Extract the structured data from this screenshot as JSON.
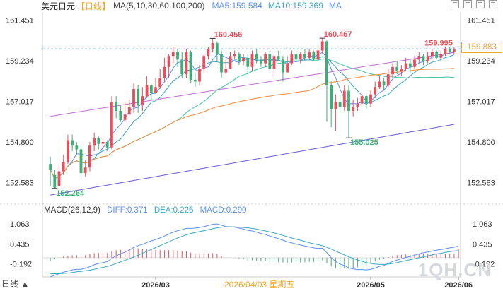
{
  "header": {
    "symbol": "美元日元",
    "period": "【日线】",
    "ma_label": "MA(5,10,30,60,100,200)",
    "ma5": "MA5:159.584",
    "ma10": "MA10:159.369",
    "ma_more": "MA"
  },
  "macd_header": {
    "label": "MACD(26,12,9)",
    "diff": "DIFF:0.371",
    "dea": "DEA:0.226",
    "macd": "MACD:0.290"
  },
  "current_price_badge": "159.883",
  "period_tab": "日线 ▲",
  "watermark": "1QH.CN",
  "crosshair_date": "2026/04/03 星期五",
  "colors": {
    "up": "#e84f5c",
    "down": "#3fae74",
    "ma5": "#5b8ff9",
    "ma10": "#3aa6c6",
    "ma30": "#41c2a8",
    "ma60": "#f08a3c",
    "ma100": "#c06fd4",
    "ma200": "#6a5cd6",
    "dash": "#4a90c2"
  },
  "chart_data": [
    {
      "type": "candlestick",
      "title": "美元日元 日线",
      "ylim": [
        151.6,
        161.9
      ],
      "yticks": [
        "161.451",
        "159.234",
        "157.017",
        "154.800",
        "152.583"
      ],
      "xticks": [
        "2026/03",
        "2026/05",
        "2026/06"
      ],
      "annotations": [
        {
          "label": "160.456",
          "value": 160.456,
          "type": "high"
        },
        {
          "label": "160.467",
          "value": 160.467,
          "type": "high"
        },
        {
          "label": "159.995",
          "value": 159.995,
          "type": "high"
        },
        {
          "label": "155.025",
          "value": 155.025,
          "type": "low"
        },
        {
          "label": "152.264",
          "value": 152.264,
          "type": "low"
        }
      ],
      "last_price": 159.883,
      "candles": [
        [
          153.6,
          153.3,
          154.0,
          152.4
        ],
        [
          153.0,
          152.3,
          153.3,
          152.26
        ],
        [
          152.4,
          153.2,
          153.5,
          152.3
        ],
        [
          153.2,
          153.7,
          154.1,
          153.0
        ],
        [
          153.7,
          154.9,
          155.2,
          153.6
        ],
        [
          154.9,
          154.6,
          155.2,
          154.3
        ],
        [
          154.6,
          154.4,
          154.8,
          154.1
        ],
        [
          154.4,
          153.1,
          154.6,
          152.9
        ],
        [
          153.1,
          153.4,
          153.8,
          152.9
        ],
        [
          153.4,
          154.6,
          154.8,
          153.2
        ],
        [
          154.6,
          155.0,
          155.3,
          154.3
        ],
        [
          155.0,
          154.7,
          155.1,
          154.4
        ],
        [
          154.7,
          154.8,
          155.0,
          154.5
        ],
        [
          154.8,
          154.5,
          154.9,
          154.3
        ],
        [
          154.5,
          157.0,
          157.3,
          154.4
        ],
        [
          157.0,
          156.5,
          157.3,
          156.1
        ],
        [
          156.5,
          156.0,
          156.8,
          155.9
        ],
        [
          156.0,
          156.3,
          157.0,
          155.9
        ],
        [
          156.3,
          156.7,
          157.1,
          156.3
        ],
        [
          156.7,
          157.7,
          158.0,
          156.4
        ],
        [
          157.7,
          156.8,
          157.9,
          156.4
        ],
        [
          156.8,
          157.3,
          157.8,
          156.5
        ],
        [
          157.3,
          157.9,
          158.4,
          157.2
        ],
        [
          157.9,
          157.5,
          158.0,
          157.1
        ],
        [
          157.5,
          157.8,
          158.3,
          157.5
        ],
        [
          157.8,
          158.3,
          158.8,
          157.7
        ],
        [
          158.3,
          158.9,
          159.4,
          158.1
        ],
        [
          158.9,
          159.5,
          159.6,
          158.3
        ],
        [
          159.5,
          159.7,
          160.0,
          159.1
        ],
        [
          159.7,
          159.3,
          159.9,
          158.9
        ],
        [
          159.3,
          158.5,
          159.7,
          158.3
        ],
        [
          158.5,
          159.7,
          159.9,
          158.3
        ],
        [
          159.7,
          158.2,
          159.8,
          158.0
        ],
        [
          158.2,
          158.1,
          158.6,
          157.8
        ],
        [
          158.1,
          158.8,
          159.0,
          157.9
        ],
        [
          158.8,
          159.5,
          159.6,
          158.6
        ],
        [
          159.5,
          159.9,
          160.0,
          159.3
        ],
        [
          159.9,
          160.2,
          160.46,
          159.7
        ],
        [
          160.2,
          159.6,
          160.3,
          159.2
        ],
        [
          159.6,
          158.6,
          159.8,
          158.3
        ],
        [
          158.6,
          158.8,
          159.3,
          158.5
        ],
        [
          158.8,
          159.5,
          159.7,
          158.8
        ],
        [
          159.5,
          159.6,
          159.8,
          159.3
        ],
        [
          159.6,
          159.2,
          159.7,
          159.0
        ],
        [
          159.2,
          159.4,
          159.6,
          159.0
        ],
        [
          159.4,
          158.9,
          159.6,
          158.6
        ],
        [
          158.9,
          159.6,
          159.8,
          158.7
        ],
        [
          159.6,
          159.3,
          159.9,
          159.1
        ],
        [
          159.3,
          159.1,
          159.5,
          158.9
        ],
        [
          159.1,
          159.6,
          159.7,
          158.9
        ],
        [
          159.6,
          158.8,
          159.8,
          158.7
        ],
        [
          158.8,
          159.5,
          159.6,
          158.3
        ],
        [
          159.5,
          159.3,
          159.8,
          159.2
        ],
        [
          159.3,
          158.6,
          159.5,
          158.1
        ],
        [
          158.6,
          159.1,
          159.5,
          158.6
        ],
        [
          159.1,
          159.6,
          159.8,
          159.0
        ],
        [
          159.6,
          159.3,
          159.9,
          159.2
        ],
        [
          159.3,
          159.6,
          159.7,
          159.1
        ],
        [
          159.6,
          159.4,
          159.9,
          159.2
        ],
        [
          159.4,
          159.7,
          159.9,
          159.3
        ],
        [
          159.7,
          159.3,
          159.8,
          159.2
        ],
        [
          159.3,
          159.8,
          159.9,
          159.3
        ],
        [
          159.8,
          160.3,
          160.467,
          159.6
        ],
        [
          160.3,
          157.9,
          160.4,
          155.9
        ],
        [
          157.9,
          156.6,
          158.1,
          155.6
        ],
        [
          156.6,
          157.0,
          157.4,
          155.4
        ],
        [
          157.0,
          156.7,
          157.4,
          156.4
        ],
        [
          156.7,
          157.6,
          157.9,
          156.5
        ],
        [
          157.6,
          156.5,
          157.9,
          155.025
        ],
        [
          156.5,
          156.7,
          157.1,
          156.2
        ],
        [
          156.7,
          156.9,
          157.2,
          156.5
        ],
        [
          156.9,
          157.3,
          157.5,
          156.8
        ],
        [
          157.3,
          156.9,
          157.4,
          156.6
        ],
        [
          156.9,
          157.4,
          157.6,
          156.7
        ],
        [
          157.4,
          157.8,
          158.1,
          157.2
        ],
        [
          157.8,
          158.1,
          158.4,
          157.7
        ],
        [
          158.1,
          157.9,
          158.3,
          157.6
        ],
        [
          157.9,
          158.5,
          158.8,
          157.8
        ],
        [
          158.5,
          158.9,
          159.1,
          158.3
        ],
        [
          158.9,
          158.7,
          159.2,
          158.5
        ],
        [
          158.7,
          158.8,
          159.0,
          158.4
        ],
        [
          158.8,
          159.1,
          159.4,
          158.7
        ],
        [
          159.1,
          158.9,
          159.3,
          158.6
        ],
        [
          158.9,
          159.3,
          159.5,
          158.8
        ],
        [
          159.3,
          159.5,
          159.7,
          159.1
        ],
        [
          159.5,
          159.2,
          159.6,
          159.0
        ],
        [
          159.2,
          159.5,
          159.7,
          159.1
        ],
        [
          159.5,
          159.7,
          159.9,
          159.3
        ],
        [
          159.7,
          159.4,
          159.8,
          159.3
        ],
        [
          159.4,
          159.6,
          159.8,
          159.3
        ],
        [
          159.6,
          159.9,
          160.0,
          159.5
        ],
        [
          159.9,
          159.7,
          160.0,
          159.6
        ],
        [
          159.7,
          159.883,
          159.995,
          159.6
        ]
      ]
    },
    {
      "type": "bar",
      "title": "MACD(26,12,9)",
      "ylim": [
        -0.6,
        1.35
      ],
      "yticks": [
        "1.063",
        "0.435",
        "-0.192"
      ],
      "series": [
        {
          "name": "DIFF",
          "values": [
            -0.6,
            -0.55,
            -0.5,
            -0.45,
            -0.42,
            -0.38,
            -0.36,
            -0.36,
            -0.33,
            -0.28,
            -0.22,
            -0.18,
            -0.15,
            -0.12,
            -0.02,
            0.06,
            0.12,
            0.18,
            0.24,
            0.32,
            0.38,
            0.42,
            0.48,
            0.53,
            0.57,
            0.62,
            0.68,
            0.74,
            0.8,
            0.85,
            0.88,
            0.92,
            0.92,
            0.93,
            0.95,
            0.98,
            1.01,
            1.05,
            1.06,
            1.02,
            0.98,
            0.97,
            0.96,
            0.93,
            0.9,
            0.86,
            0.84,
            0.8,
            0.76,
            0.73,
            0.68,
            0.64,
            0.6,
            0.55,
            0.5,
            0.47,
            0.43,
            0.4,
            0.37,
            0.34,
            0.31,
            0.29,
            0.3,
            0.16,
            0.0,
            -0.12,
            -0.2,
            -0.24,
            -0.32,
            -0.35,
            -0.37,
            -0.37,
            -0.38,
            -0.36,
            -0.32,
            -0.27,
            -0.24,
            -0.18,
            -0.12,
            -0.07,
            -0.03,
            0.01,
            0.04,
            0.08,
            0.12,
            0.16,
            0.18,
            0.21,
            0.24,
            0.26,
            0.28,
            0.31,
            0.33,
            0.371
          ]
        },
        {
          "name": "DEA",
          "values": [
            -0.5,
            -0.5,
            -0.5,
            -0.49,
            -0.48,
            -0.46,
            -0.44,
            -0.43,
            -0.41,
            -0.39,
            -0.36,
            -0.33,
            -0.3,
            -0.27,
            -0.23,
            -0.18,
            -0.13,
            -0.08,
            -0.03,
            0.03,
            0.08,
            0.14,
            0.2,
            0.26,
            0.32,
            0.38,
            0.44,
            0.5,
            0.56,
            0.62,
            0.67,
            0.72,
            0.76,
            0.79,
            0.82,
            0.85,
            0.88,
            0.91,
            0.94,
            0.96,
            0.97,
            0.97,
            0.97,
            0.96,
            0.95,
            0.94,
            0.92,
            0.9,
            0.87,
            0.84,
            0.81,
            0.78,
            0.74,
            0.7,
            0.66,
            0.62,
            0.58,
            0.55,
            0.51,
            0.47,
            0.44,
            0.41,
            0.38,
            0.33,
            0.27,
            0.21,
            0.15,
            0.09,
            0.03,
            -0.02,
            -0.07,
            -0.11,
            -0.15,
            -0.18,
            -0.2,
            -0.21,
            -0.21,
            -0.2,
            -0.18,
            -0.15,
            -0.12,
            -0.09,
            -0.06,
            -0.03,
            0.0,
            0.03,
            0.06,
            0.09,
            0.12,
            0.14,
            0.17,
            0.19,
            0.21,
            0.226
          ]
        },
        {
          "name": "MACD",
          "values": [
            -0.1,
            -0.05,
            0.0,
            0.04,
            0.06,
            0.08,
            0.08,
            0.07,
            0.08,
            0.11,
            0.14,
            0.15,
            0.15,
            0.15,
            0.21,
            0.24,
            0.25,
            0.26,
            0.27,
            0.29,
            0.3,
            0.28,
            0.28,
            0.27,
            0.25,
            0.24,
            0.24,
            0.24,
            0.24,
            0.23,
            0.21,
            0.2,
            0.16,
            0.14,
            0.13,
            0.13,
            0.13,
            0.14,
            0.12,
            0.06,
            0.01,
            0.0,
            -0.01,
            -0.03,
            -0.05,
            -0.08,
            -0.08,
            -0.1,
            -0.11,
            -0.11,
            -0.13,
            -0.14,
            -0.14,
            -0.15,
            -0.16,
            -0.15,
            -0.15,
            -0.15,
            -0.14,
            -0.13,
            -0.13,
            -0.12,
            -0.08,
            -0.17,
            -0.27,
            -0.33,
            -0.35,
            -0.33,
            -0.35,
            -0.33,
            -0.3,
            -0.26,
            -0.23,
            -0.18,
            -0.12,
            -0.06,
            -0.03,
            0.02,
            0.06,
            0.08,
            0.09,
            0.1,
            0.1,
            0.11,
            0.12,
            0.13,
            0.12,
            0.12,
            0.12,
            0.12,
            0.11,
            0.12,
            0.12,
            0.29
          ]
        }
      ]
    }
  ]
}
